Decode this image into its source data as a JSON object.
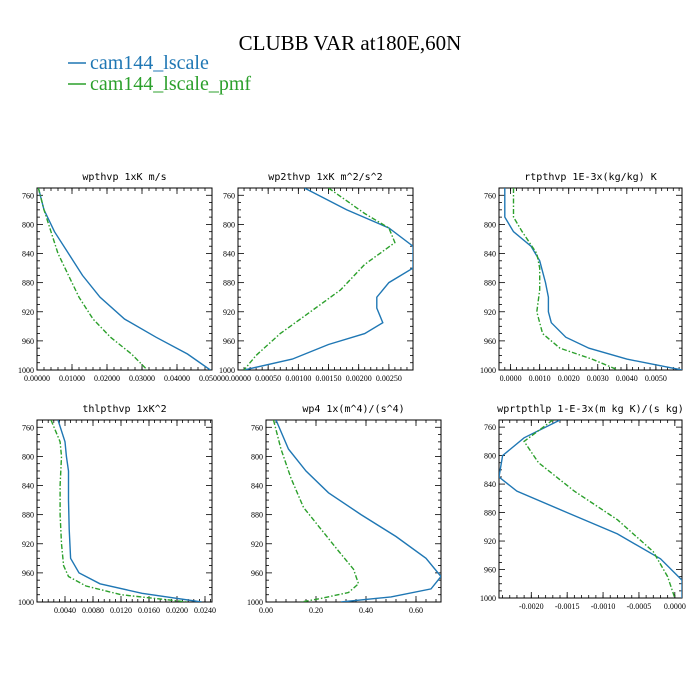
{
  "figure": {
    "title": "CLUBB VAR at180E,60N",
    "legend": [
      {
        "label": "cam144_lscale",
        "color": "#1f77b4",
        "dash": "solid"
      },
      {
        "label": "cam144_lscale_pmf",
        "color": "#2ca02c",
        "dash": "dashdot"
      }
    ]
  },
  "chart_data": [
    {
      "type": "line",
      "title": "wpthvp  1xK m/s",
      "xlim": [
        0,
        0.05
      ],
      "ylim": [
        1000,
        750
      ],
      "x_ticks": [
        "0.00000",
        "0.01000",
        "0.02000",
        "0.03000",
        "0.04000",
        "0.05000"
      ],
      "x_tick_values": [
        0,
        0.01,
        0.02,
        0.03,
        0.04,
        0.05
      ],
      "y_ticks": [
        "760",
        "800",
        "840",
        "880",
        "920",
        "960",
        "1000"
      ],
      "y_tick_values": [
        760,
        800,
        840,
        880,
        920,
        960,
        1000
      ],
      "series": [
        {
          "name": "cam144_lscale",
          "x": [
            0.0004,
            0.002,
            0.005,
            0.009,
            0.013,
            0.018,
            0.025,
            0.034,
            0.043,
            0.0495
          ],
          "y": [
            750,
            780,
            810,
            840,
            870,
            900,
            930,
            955,
            978,
            1000
          ]
        },
        {
          "name": "cam144_lscale_pmf",
          "x": [
            0.0004,
            0.002,
            0.004,
            0.006,
            0.009,
            0.012,
            0.016,
            0.021,
            0.027,
            0.0315
          ],
          "y": [
            750,
            780,
            810,
            840,
            870,
            900,
            930,
            955,
            978,
            1000
          ]
        }
      ]
    },
    {
      "type": "line",
      "title": "wp2thvp  1xK m^2/s^2",
      "xlim": [
        0,
        0.0029
      ],
      "ylim": [
        1000,
        750
      ],
      "x_ticks": [
        "0.00000",
        "0.00050",
        "0.00100",
        "0.00150",
        "0.00200",
        "0.00250"
      ],
      "x_tick_values": [
        0,
        0.0005,
        0.001,
        0.0015,
        0.002,
        0.0025
      ],
      "y_ticks": [
        "760",
        "800",
        "840",
        "880",
        "920",
        "960",
        "1000"
      ],
      "y_tick_values": [
        760,
        800,
        840,
        880,
        920,
        960,
        1000
      ],
      "series": [
        {
          "name": "cam144_lscale",
          "x": [
            0.0011,
            0.0018,
            0.0025,
            0.0029,
            0.0029,
            0.0025,
            0.0023,
            0.0023,
            0.0024,
            0.0021,
            0.0015,
            0.0009,
            0.0001
          ],
          "y": [
            750,
            780,
            805,
            830,
            860,
            880,
            900,
            915,
            935,
            950,
            965,
            985,
            1000
          ]
        },
        {
          "name": "cam144_lscale_pmf",
          "x": [
            0.0015,
            0.0021,
            0.0025,
            0.0026,
            0.0021,
            0.0017,
            0.0012,
            0.0007,
            0.0003,
            0.0001
          ],
          "y": [
            750,
            785,
            805,
            825,
            855,
            890,
            920,
            950,
            980,
            1000
          ]
        }
      ]
    },
    {
      "type": "line",
      "title": "rtpthvp  1E-3x(kg/kg) K",
      "xlim": [
        -0.0004,
        0.0059
      ],
      "ylim": [
        1000,
        750
      ],
      "x_ticks": [
        "0.0000",
        "0.0010",
        "0.0020",
        "0.0030",
        "0.0040",
        "0.0050"
      ],
      "x_tick_values": [
        0,
        0.001,
        0.002,
        0.003,
        0.004,
        0.005
      ],
      "y_ticks": [
        "760",
        "800",
        "840",
        "880",
        "920",
        "960",
        "1000"
      ],
      "y_tick_values": [
        760,
        800,
        840,
        880,
        920,
        960,
        1000
      ],
      "series": [
        {
          "name": "cam144_lscale",
          "x": [
            -0.0002,
            -0.0002,
            0.0001,
            0.0007,
            0.001,
            0.0012,
            0.0013,
            0.0013,
            0.0014,
            0.0019,
            0.0027,
            0.004,
            0.0059
          ],
          "y": [
            750,
            790,
            810,
            830,
            850,
            880,
            900,
            920,
            935,
            955,
            970,
            985,
            1000
          ]
        },
        {
          "name": "cam144_lscale_pmf",
          "x": [
            0.0001,
            0.0001,
            0.0004,
            0.0009,
            0.001,
            0.001,
            0.0009,
            0.0011,
            0.0017,
            0.0028,
            0.0037
          ],
          "y": [
            750,
            790,
            810,
            840,
            860,
            890,
            920,
            950,
            970,
            985,
            1000
          ]
        }
      ]
    },
    {
      "type": "line",
      "title": "thlpthvp  1xK^2",
      "xlim": [
        0,
        0.025
      ],
      "ylim": [
        1000,
        750
      ],
      "x_ticks": [
        "0.0040",
        "0.0080",
        "0.0120",
        "0.0160",
        "0.0200",
        "0.0240"
      ],
      "x_tick_values": [
        0.004,
        0.008,
        0.012,
        0.016,
        0.02,
        0.024
      ],
      "y_ticks": [
        "760",
        "800",
        "840",
        "880",
        "920",
        "960",
        "1000"
      ],
      "y_tick_values": [
        760,
        800,
        840,
        880,
        920,
        960,
        1000
      ],
      "series": [
        {
          "name": "cam144_lscale",
          "x": [
            0.003,
            0.004,
            0.0042,
            0.0045,
            0.0045,
            0.0046,
            0.0048,
            0.006,
            0.009,
            0.015,
            0.0235
          ],
          "y": [
            750,
            780,
            800,
            820,
            860,
            900,
            940,
            960,
            975,
            988,
            1000
          ]
        },
        {
          "name": "cam144_lscale_pmf",
          "x": [
            0.002,
            0.0033,
            0.0035,
            0.0033,
            0.0033,
            0.0035,
            0.0038,
            0.0045,
            0.007,
            0.012,
            0.0215
          ],
          "y": [
            750,
            780,
            800,
            840,
            880,
            920,
            950,
            965,
            978,
            990,
            1000
          ]
        }
      ]
    },
    {
      "type": "line",
      "title": "wp4  1x(m^4)/(s^4)",
      "xlim": [
        0,
        0.7
      ],
      "ylim": [
        1000,
        750
      ],
      "x_ticks": [
        "0.00",
        "0.20",
        "0.40",
        "0.60"
      ],
      "x_tick_values": [
        0,
        0.2,
        0.4,
        0.6
      ],
      "y_ticks": [
        "760",
        "800",
        "840",
        "880",
        "920",
        "960",
        "1000"
      ],
      "y_tick_values": [
        760,
        800,
        840,
        880,
        920,
        960,
        1000
      ],
      "series": [
        {
          "name": "cam144_lscale",
          "x": [
            0.04,
            0.09,
            0.16,
            0.25,
            0.38,
            0.52,
            0.64,
            0.7,
            0.66,
            0.5,
            0.3
          ],
          "y": [
            750,
            790,
            820,
            850,
            880,
            910,
            940,
            965,
            982,
            993,
            1000
          ]
        },
        {
          "name": "cam144_lscale_pmf",
          "x": [
            0.03,
            0.06,
            0.1,
            0.15,
            0.22,
            0.29,
            0.35,
            0.37,
            0.33,
            0.22,
            0.14
          ],
          "y": [
            750,
            790,
            830,
            870,
            900,
            930,
            955,
            975,
            987,
            995,
            1000
          ]
        }
      ]
    },
    {
      "type": "line",
      "title": "wprtpthlp  1-E-3x(m kg K)/(s kg)",
      "xlim": [
        -0.00245,
        0.0001
      ],
      "ylim": [
        1000,
        750
      ],
      "x_ticks": [
        "-0.0020",
        "-0.0015",
        "-0.0010",
        "-0.0005",
        "0.0000"
      ],
      "x_tick_values": [
        -0.002,
        -0.0015,
        -0.001,
        -0.0005,
        0
      ],
      "y_ticks": [
        "760",
        "800",
        "840",
        "880",
        "920",
        "960",
        "1000"
      ],
      "y_tick_values": [
        760,
        800,
        840,
        880,
        920,
        960,
        1000
      ],
      "series": [
        {
          "name": "cam144_lscale",
          "x": [
            -0.0016,
            -0.0021,
            -0.0024,
            -0.00245,
            -0.0022,
            -0.0015,
            -0.0008,
            -0.0002,
            0.0001,
            0.0001
          ],
          "y": [
            750,
            775,
            800,
            830,
            850,
            880,
            910,
            945,
            975,
            1000
          ]
        },
        {
          "name": "cam144_lscale_pmf",
          "x": [
            -0.0017,
            -0.0021,
            -0.0019,
            -0.0014,
            -0.0008,
            -0.0003,
            -0.0001,
            0
          ],
          "y": [
            750,
            780,
            810,
            850,
            890,
            935,
            970,
            1000
          ]
        }
      ]
    }
  ]
}
